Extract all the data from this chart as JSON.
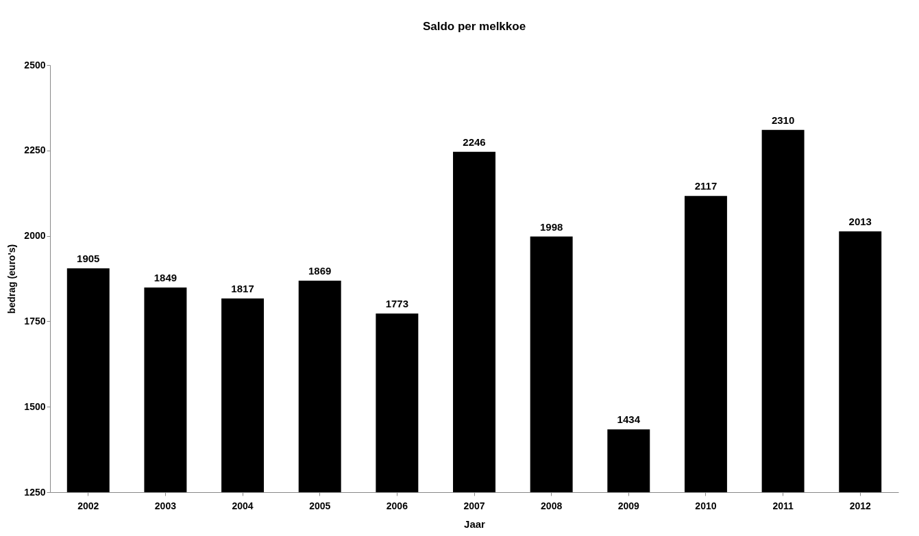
{
  "chart_data": {
    "type": "bar",
    "title": "Saldo per melkkoe",
    "xlabel": "Jaar",
    "ylabel": "bedrag (euro's)",
    "categories": [
      "2002",
      "2003",
      "2004",
      "2005",
      "2006",
      "2007",
      "2008",
      "2009",
      "2010",
      "2011",
      "2012"
    ],
    "values": [
      1905,
      1849,
      1817,
      1869,
      1773,
      2246,
      1998,
      1434,
      2117,
      2310,
      2013
    ],
    "color": "#000000",
    "ylim": [
      1250,
      2500
    ],
    "yticks": [
      1250,
      1500,
      1750,
      2000,
      2250,
      2500
    ],
    "data_labels": true,
    "grid": false
  }
}
